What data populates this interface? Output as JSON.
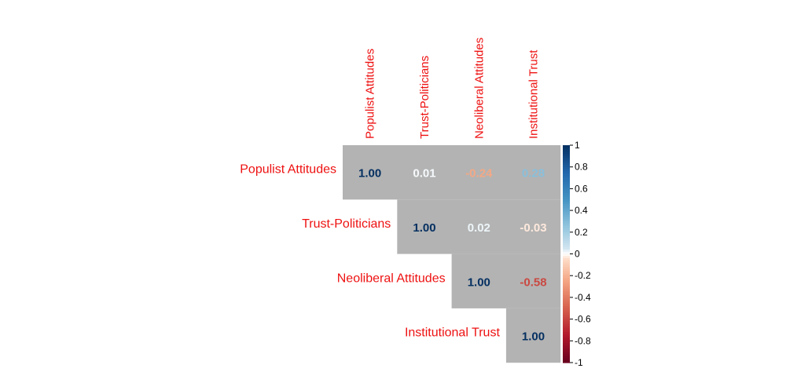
{
  "chart_data": {
    "type": "heatmap",
    "variables": [
      "Populist Attitudes",
      "Trust-Politicians",
      "Neoliberal Attitudes",
      "Institutional Trust"
    ],
    "matrix_upper": [
      [
        "1.00",
        "0.01",
        "-0.24",
        "0.28"
      ],
      [
        null,
        "1.00",
        "0.02",
        "-0.03"
      ],
      [
        null,
        null,
        "1.00",
        "-0.58"
      ],
      [
        null,
        null,
        null,
        "1.00"
      ]
    ],
    "values_upper": [
      [
        1.0,
        0.01,
        -0.24,
        0.28
      ],
      [
        null,
        1.0,
        0.02,
        -0.03
      ],
      [
        null,
        null,
        1.0,
        -0.58
      ],
      [
        null,
        null,
        null,
        1.0
      ]
    ],
    "colorbar": {
      "range": [
        -1,
        1
      ],
      "ticks": [
        "1",
        "0.8",
        "0.6",
        "0.4",
        "0.2",
        "0",
        "-0.2",
        "-0.4",
        "-0.6",
        "-0.8",
        "-1"
      ]
    },
    "colors": {
      "label": "#ee1111",
      "cell_bg": "#b3b3b3",
      "neg_strong": "#67001f",
      "neutral": "#ffffff",
      "pos_strong": "#053061"
    }
  }
}
